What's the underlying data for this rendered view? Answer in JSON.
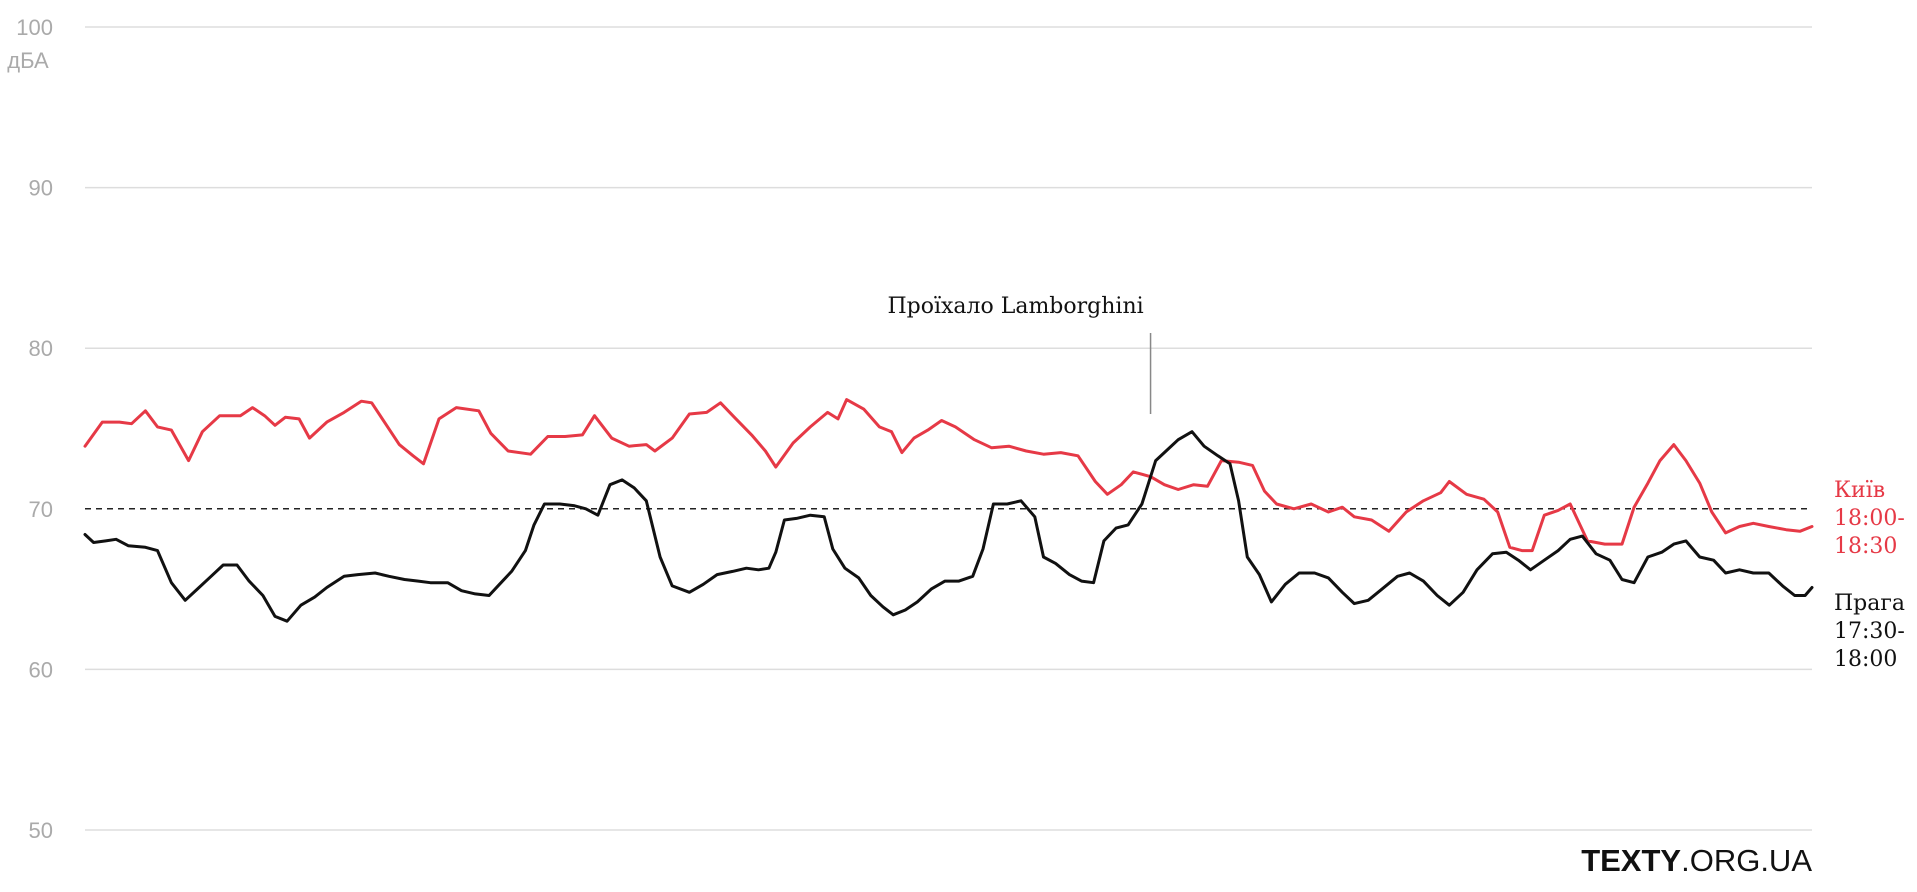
{
  "chart_data": {
    "type": "line",
    "unit_label": "дБА",
    "ylim": [
      50,
      100
    ],
    "yticks": [
      "100",
      "90",
      "80",
      "70",
      "60",
      "50"
    ],
    "ytick_values": [
      100,
      90,
      80,
      70,
      60,
      50
    ],
    "reference_line": 70,
    "grid": true,
    "legend": "end-of-line labels, right",
    "annotation": {
      "text": "Проїхало Lamborghini",
      "x": 0.617
    },
    "series": [
      {
        "name_lines": [
          "Київ",
          "18:00-",
          "18:30"
        ],
        "color": "#e63946",
        "values": [
          [
            0.0,
            73.9
          ],
          [
            0.01,
            75.4
          ],
          [
            0.02,
            75.4
          ],
          [
            0.027,
            75.3
          ],
          [
            0.035,
            76.1
          ],
          [
            0.042,
            75.1
          ],
          [
            0.05,
            74.9
          ],
          [
            0.06,
            73.0
          ],
          [
            0.068,
            74.8
          ],
          [
            0.078,
            75.8
          ],
          [
            0.09,
            75.8
          ],
          [
            0.097,
            76.3
          ],
          [
            0.104,
            75.8
          ],
          [
            0.11,
            75.2
          ],
          [
            0.116,
            75.7
          ],
          [
            0.124,
            75.6
          ],
          [
            0.13,
            74.4
          ],
          [
            0.14,
            75.4
          ],
          [
            0.15,
            76.0
          ],
          [
            0.16,
            76.7
          ],
          [
            0.166,
            76.6
          ],
          [
            0.174,
            75.3
          ],
          [
            0.182,
            74.0
          ],
          [
            0.19,
            73.3
          ],
          [
            0.196,
            72.8
          ],
          [
            0.205,
            75.6
          ],
          [
            0.215,
            76.3
          ],
          [
            0.228,
            76.1
          ],
          [
            0.235,
            74.7
          ],
          [
            0.245,
            73.6
          ],
          [
            0.258,
            73.4
          ],
          [
            0.268,
            74.5
          ],
          [
            0.278,
            74.5
          ],
          [
            0.288,
            74.6
          ],
          [
            0.295,
            75.8
          ],
          [
            0.305,
            74.4
          ],
          [
            0.315,
            73.9
          ],
          [
            0.325,
            74.0
          ],
          [
            0.33,
            73.6
          ],
          [
            0.34,
            74.4
          ],
          [
            0.35,
            75.9
          ],
          [
            0.36,
            76.0
          ],
          [
            0.368,
            76.6
          ],
          [
            0.376,
            75.7
          ],
          [
            0.386,
            74.6
          ],
          [
            0.394,
            73.6
          ],
          [
            0.4,
            72.6
          ],
          [
            0.41,
            74.1
          ],
          [
            0.42,
            75.1
          ],
          [
            0.43,
            76.0
          ],
          [
            0.436,
            75.6
          ],
          [
            0.441,
            76.8
          ],
          [
            0.451,
            76.2
          ],
          [
            0.46,
            75.1
          ],
          [
            0.467,
            74.8
          ],
          [
            0.473,
            73.5
          ],
          [
            0.48,
            74.4
          ],
          [
            0.488,
            74.9
          ],
          [
            0.496,
            75.5
          ],
          [
            0.504,
            75.1
          ],
          [
            0.515,
            74.3
          ],
          [
            0.525,
            73.8
          ],
          [
            0.535,
            73.9
          ],
          [
            0.545,
            73.6
          ],
          [
            0.555,
            73.4
          ],
          [
            0.565,
            73.5
          ],
          [
            0.575,
            73.3
          ],
          [
            0.585,
            71.7
          ],
          [
            0.592,
            70.9
          ],
          [
            0.6,
            71.5
          ],
          [
            0.607,
            72.3
          ],
          [
            0.617,
            72.0
          ],
          [
            0.625,
            71.5
          ],
          [
            0.633,
            71.2
          ],
          [
            0.642,
            71.5
          ],
          [
            0.65,
            71.4
          ],
          [
            0.658,
            73.0
          ],
          [
            0.668,
            72.9
          ],
          [
            0.676,
            72.7
          ],
          [
            0.683,
            71.1
          ],
          [
            0.69,
            70.3
          ],
          [
            0.7,
            70.0
          ],
          [
            0.71,
            70.3
          ],
          [
            0.72,
            69.8
          ],
          [
            0.728,
            70.1
          ],
          [
            0.735,
            69.5
          ],
          [
            0.745,
            69.3
          ],
          [
            0.755,
            68.6
          ],
          [
            0.765,
            69.8
          ],
          [
            0.775,
            70.5
          ],
          [
            0.785,
            71.0
          ],
          [
            0.79,
            71.7
          ],
          [
            0.8,
            70.9
          ],
          [
            0.81,
            70.6
          ],
          [
            0.818,
            69.8
          ],
          [
            0.825,
            67.6
          ],
          [
            0.832,
            67.4
          ],
          [
            0.838,
            67.4
          ],
          [
            0.845,
            69.6
          ],
          [
            0.853,
            69.9
          ],
          [
            0.86,
            70.3
          ],
          [
            0.87,
            68.0
          ],
          [
            0.88,
            67.8
          ],
          [
            0.89,
            67.8
          ],
          [
            0.897,
            70.1
          ],
          [
            0.905,
            71.6
          ],
          [
            0.912,
            73.0
          ],
          [
            0.92,
            74.0
          ],
          [
            0.927,
            73.0
          ],
          [
            0.935,
            71.6
          ],
          [
            0.942,
            69.8
          ],
          [
            0.95,
            68.5
          ],
          [
            0.958,
            68.9
          ],
          [
            0.966,
            69.1
          ],
          [
            0.975,
            68.9
          ],
          [
            0.985,
            68.7
          ],
          [
            0.993,
            68.6
          ],
          [
            1.0,
            68.9
          ]
        ]
      },
      {
        "name_lines": [
          "Прага",
          "17:30-",
          "18:00"
        ],
        "color": "#111111",
        "values": [
          [
            0.0,
            68.4
          ],
          [
            0.005,
            67.9
          ],
          [
            0.012,
            68.0
          ],
          [
            0.018,
            68.1
          ],
          [
            0.025,
            67.7
          ],
          [
            0.035,
            67.6
          ],
          [
            0.042,
            67.4
          ],
          [
            0.05,
            65.4
          ],
          [
            0.058,
            64.3
          ],
          [
            0.065,
            65.0
          ],
          [
            0.073,
            65.8
          ],
          [
            0.08,
            66.5
          ],
          [
            0.088,
            66.5
          ],
          [
            0.095,
            65.5
          ],
          [
            0.103,
            64.6
          ],
          [
            0.11,
            63.3
          ],
          [
            0.117,
            63.0
          ],
          [
            0.125,
            64.0
          ],
          [
            0.133,
            64.5
          ],
          [
            0.14,
            65.1
          ],
          [
            0.15,
            65.8
          ],
          [
            0.158,
            65.9
          ],
          [
            0.168,
            66.0
          ],
          [
            0.176,
            65.8
          ],
          [
            0.185,
            65.6
          ],
          [
            0.193,
            65.5
          ],
          [
            0.2,
            65.4
          ],
          [
            0.21,
            65.4
          ],
          [
            0.218,
            64.9
          ],
          [
            0.226,
            64.7
          ],
          [
            0.234,
            64.6
          ],
          [
            0.24,
            65.3
          ],
          [
            0.247,
            66.1
          ],
          [
            0.255,
            67.4
          ],
          [
            0.26,
            69.0
          ],
          [
            0.266,
            70.3
          ],
          [
            0.275,
            70.3
          ],
          [
            0.283,
            70.2
          ],
          [
            0.29,
            70.0
          ],
          [
            0.297,
            69.6
          ],
          [
            0.304,
            71.5
          ],
          [
            0.311,
            71.8
          ],
          [
            0.318,
            71.3
          ],
          [
            0.325,
            70.5
          ],
          [
            0.333,
            67.0
          ],
          [
            0.34,
            65.2
          ],
          [
            0.35,
            64.8
          ],
          [
            0.358,
            65.3
          ],
          [
            0.366,
            65.9
          ],
          [
            0.375,
            66.1
          ],
          [
            0.383,
            66.3
          ],
          [
            0.39,
            66.2
          ],
          [
            0.396,
            66.3
          ],
          [
            0.4,
            67.3
          ],
          [
            0.405,
            69.3
          ],
          [
            0.412,
            69.4
          ],
          [
            0.42,
            69.6
          ],
          [
            0.428,
            69.5
          ],
          [
            0.433,
            67.5
          ],
          [
            0.44,
            66.3
          ],
          [
            0.448,
            65.7
          ],
          [
            0.455,
            64.6
          ],
          [
            0.462,
            63.9
          ],
          [
            0.468,
            63.4
          ],
          [
            0.475,
            63.7
          ],
          [
            0.482,
            64.2
          ],
          [
            0.49,
            65.0
          ],
          [
            0.498,
            65.5
          ],
          [
            0.506,
            65.5
          ],
          [
            0.514,
            65.8
          ],
          [
            0.52,
            67.5
          ],
          [
            0.526,
            70.3
          ],
          [
            0.534,
            70.3
          ],
          [
            0.542,
            70.5
          ],
          [
            0.55,
            69.5
          ],
          [
            0.555,
            67.0
          ],
          [
            0.562,
            66.6
          ],
          [
            0.57,
            65.9
          ],
          [
            0.577,
            65.5
          ],
          [
            0.584,
            65.4
          ],
          [
            0.59,
            68.0
          ],
          [
            0.597,
            68.8
          ],
          [
            0.604,
            69.0
          ],
          [
            0.612,
            70.3
          ],
          [
            0.62,
            73.0
          ],
          [
            0.627,
            73.7
          ],
          [
            0.633,
            74.3
          ],
          [
            0.641,
            74.8
          ],
          [
            0.648,
            73.9
          ],
          [
            0.656,
            73.3
          ],
          [
            0.663,
            72.8
          ],
          [
            0.668,
            70.5
          ],
          [
            0.673,
            67.0
          ],
          [
            0.68,
            65.9
          ],
          [
            0.687,
            64.2
          ],
          [
            0.695,
            65.3
          ],
          [
            0.703,
            66.0
          ],
          [
            0.712,
            66.0
          ],
          [
            0.72,
            65.7
          ],
          [
            0.728,
            64.8
          ],
          [
            0.735,
            64.1
          ],
          [
            0.743,
            64.3
          ],
          [
            0.751,
            65.0
          ],
          [
            0.76,
            65.8
          ],
          [
            0.767,
            66.0
          ],
          [
            0.775,
            65.5
          ],
          [
            0.783,
            64.6
          ],
          [
            0.79,
            64.0
          ],
          [
            0.798,
            64.8
          ],
          [
            0.806,
            66.2
          ],
          [
            0.815,
            67.2
          ],
          [
            0.823,
            67.3
          ],
          [
            0.83,
            66.8
          ],
          [
            0.837,
            66.2
          ],
          [
            0.845,
            66.8
          ],
          [
            0.853,
            67.4
          ],
          [
            0.86,
            68.1
          ],
          [
            0.867,
            68.3
          ],
          [
            0.875,
            67.2
          ],
          [
            0.883,
            66.8
          ],
          [
            0.89,
            65.6
          ],
          [
            0.897,
            65.4
          ],
          [
            0.905,
            67.0
          ],
          [
            0.913,
            67.3
          ],
          [
            0.92,
            67.8
          ],
          [
            0.927,
            68.0
          ],
          [
            0.935,
            67.0
          ],
          [
            0.943,
            66.8
          ],
          [
            0.95,
            66.0
          ],
          [
            0.958,
            66.2
          ],
          [
            0.966,
            66.0
          ],
          [
            0.975,
            66.0
          ],
          [
            0.983,
            65.2
          ],
          [
            0.99,
            64.6
          ],
          [
            0.996,
            64.6
          ],
          [
            1.0,
            65.1
          ]
        ]
      }
    ]
  },
  "logo": {
    "bold": "TEXTY",
    "light": ".ORG.UA"
  }
}
